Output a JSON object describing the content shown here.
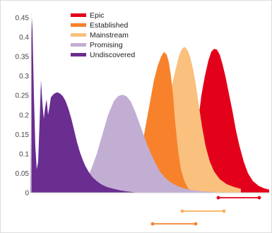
{
  "chart_data": {
    "type": "area",
    "title": "",
    "xlabel": "",
    "ylabel": "",
    "ylim": [
      0,
      0.45
    ],
    "yticks": [
      "0",
      "0.05",
      "0.1",
      "0.15",
      "0.2",
      "0.25",
      "0.3",
      "0.35",
      "0.4",
      "0.45"
    ],
    "grid": false,
    "legend_position": "top-left",
    "series": [
      {
        "name": "Epic",
        "color": "#e3001b",
        "x": [
          250,
          262,
          270,
          276,
          280,
          284,
          289,
          294,
          298,
          302,
          306,
          310,
          314,
          318,
          323,
          328,
          333,
          338,
          344,
          350,
          357,
          365,
          372,
          380
        ],
        "y": [
          0.002,
          0.03,
          0.08,
          0.14,
          0.19,
          0.25,
          0.3,
          0.34,
          0.362,
          0.37,
          0.368,
          0.355,
          0.33,
          0.3,
          0.255,
          0.21,
          0.16,
          0.12,
          0.08,
          0.05,
          0.03,
          0.018,
          0.012,
          0.008
        ]
      },
      {
        "name": "Mainstream",
        "color": "#f9c07e",
        "x": [
          195,
          205,
          213,
          220,
          227,
          233,
          239,
          244,
          248,
          252,
          256,
          260,
          264,
          268,
          272,
          276,
          280,
          285,
          290,
          296,
          302,
          310,
          320,
          330,
          340
        ],
        "y": [
          0.002,
          0.02,
          0.05,
          0.09,
          0.14,
          0.19,
          0.24,
          0.29,
          0.32,
          0.35,
          0.368,
          0.375,
          0.368,
          0.35,
          0.32,
          0.28,
          0.23,
          0.17,
          0.12,
          0.08,
          0.055,
          0.035,
          0.022,
          0.015,
          0.01
        ]
      },
      {
        "name": "Established",
        "color": "#f7822b",
        "x": [
          178,
          188,
          196,
          202,
          207,
          212,
          217,
          222,
          227,
          231,
          235,
          238,
          241,
          244,
          247,
          251,
          255,
          260,
          265,
          270
        ],
        "y": [
          0.002,
          0.04,
          0.09,
          0.14,
          0.19,
          0.24,
          0.29,
          0.325,
          0.35,
          0.362,
          0.355,
          0.335,
          0.3,
          0.25,
          0.18,
          0.11,
          0.06,
          0.03,
          0.012,
          0.005
        ]
      },
      {
        "name": "Promising",
        "color": "#c3aed3",
        "x": [
          100,
          112,
          120,
          128,
          136,
          144,
          152,
          160,
          166,
          172,
          178,
          184,
          190,
          196,
          202,
          208,
          214,
          220,
          226,
          232,
          238,
          245,
          252,
          260,
          270,
          282,
          300
        ],
        "y": [
          0.002,
          0.01,
          0.03,
          0.06,
          0.1,
          0.15,
          0.2,
          0.235,
          0.248,
          0.252,
          0.248,
          0.235,
          0.21,
          0.18,
          0.15,
          0.12,
          0.095,
          0.072,
          0.053,
          0.04,
          0.03,
          0.022,
          0.016,
          0.011,
          0.007,
          0.004,
          0.002
        ]
      },
      {
        "name": "Undiscovered",
        "color": "#6a2d90",
        "x": [
          42,
          43,
          44,
          45,
          47,
          49,
          51,
          53,
          55,
          57,
          59,
          61,
          63,
          65,
          67,
          69,
          71,
          74,
          77,
          80,
          84,
          88,
          92,
          96,
          100,
          104,
          108,
          112,
          116,
          120,
          125,
          130,
          136,
          142,
          150,
          160,
          170,
          180,
          190
        ],
        "y": [
          0.002,
          0.33,
          0.45,
          0.42,
          0.25,
          0.12,
          0.06,
          0.08,
          0.18,
          0.29,
          0.23,
          0.19,
          0.22,
          0.24,
          0.2,
          0.22,
          0.245,
          0.252,
          0.256,
          0.258,
          0.255,
          0.248,
          0.235,
          0.215,
          0.19,
          0.16,
          0.13,
          0.105,
          0.085,
          0.068,
          0.052,
          0.04,
          0.03,
          0.022,
          0.015,
          0.01,
          0.006,
          0.003,
          0.001
        ]
      }
    ],
    "range_markers": [
      {
        "series": "Epic",
        "color": "#e3001b",
        "x": [
          308,
          366
        ]
      },
      {
        "series": "Mainstream",
        "color": "#f9b05a",
        "x": [
          257,
          316
        ]
      },
      {
        "series": "Established",
        "color": "#f7822b",
        "x": [
          215,
          276
        ]
      }
    ]
  }
}
